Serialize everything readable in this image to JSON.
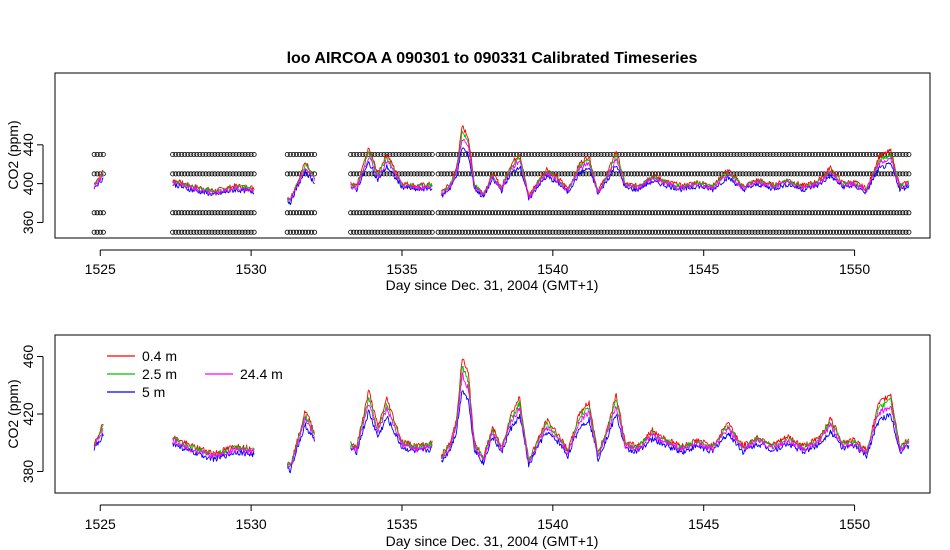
{
  "page_title": "loo   AIRCOA  A    090301  to  090331   Calibrated Timeseries",
  "chart_data": [
    {
      "type": "scatter",
      "title": "loo   AIRCOA  A    090301  to  090331   Calibrated Timeseries",
      "xlabel": "Day since Dec. 31, 2004 (GMT+1)",
      "ylabel": "CO2 (ppm)",
      "xlim": [
        1523.5,
        1552.5
      ],
      "ylim": [
        344,
        514
      ],
      "xticks": [
        "1525",
        "1530",
        "1535",
        "1540",
        "1545",
        "1550"
      ],
      "xtick_values": [
        1525,
        1530,
        1535,
        1540,
        1545,
        1550
      ],
      "yticks": [
        "360",
        "400",
        "440"
      ],
      "ytick_values": [
        360,
        400,
        440
      ],
      "calibration_levels": [
        350,
        370,
        410,
        430
      ],
      "calibration_spans": [
        [
          1524.8,
          1525.1
        ],
        [
          1527.4,
          1530.1
        ],
        [
          1531.2,
          1532.1
        ],
        [
          1533.3,
          1536.0
        ],
        [
          1536.2,
          1551.8
        ]
      ],
      "series_colors": [
        "#ff0000",
        "#00c000",
        "#0000ff",
        "#ff00ff"
      ]
    },
    {
      "type": "line",
      "xlabel": "Day since Dec. 31, 2004 (GMT+1)",
      "ylabel": "CO2 (ppm)",
      "xlim": [
        1523.5,
        1552.5
      ],
      "ylim": [
        365,
        475
      ],
      "xticks": [
        "1525",
        "1530",
        "1535",
        "1540",
        "1545",
        "1550"
      ],
      "xtick_values": [
        1525,
        1530,
        1535,
        1540,
        1545,
        1550
      ],
      "yticks": [
        "380",
        "420",
        "460"
      ],
      "ytick_values": [
        380,
        420,
        460
      ],
      "legend_position": "top-left",
      "segments": [
        [
          1524.8,
          1525.1
        ],
        [
          1527.4,
          1530.1
        ],
        [
          1531.2,
          1532.1
        ],
        [
          1533.3,
          1536.0
        ],
        [
          1536.3,
          1551.8
        ]
      ],
      "base_points": {
        "x": [
          1524.8,
          1525.1,
          1527.4,
          1528.0,
          1528.8,
          1529.5,
          1530.1,
          1531.3,
          1531.8,
          1532.1,
          1533.3,
          1533.5,
          1533.9,
          1534.2,
          1534.5,
          1535.0,
          1535.5,
          1536.0,
          1536.3,
          1536.6,
          1536.8,
          1537.0,
          1537.2,
          1537.4,
          1537.7,
          1538.0,
          1538.3,
          1538.6,
          1538.9,
          1539.2,
          1539.5,
          1539.8,
          1540.2,
          1540.5,
          1540.9,
          1541.2,
          1541.5,
          1541.8,
          1542.1,
          1542.4,
          1542.8,
          1543.3,
          1543.8,
          1544.3,
          1544.8,
          1545.3,
          1545.8,
          1546.3,
          1546.8,
          1547.3,
          1547.8,
          1548.3,
          1548.8,
          1549.2,
          1549.6,
          1550.0,
          1550.4,
          1550.8,
          1551.2,
          1551.5,
          1551.8
        ],
        "y": [
          398,
          410,
          402,
          396,
          391,
          396,
          394,
          383,
          418,
          405,
          398,
          396,
          430,
          408,
          425,
          399,
          396,
          398,
          389,
          398,
          412,
          450,
          440,
          398,
          388,
          408,
          395,
          415,
          426,
          386,
          400,
          412,
          403,
          393,
          417,
          423,
          391,
          407,
          428,
          398,
          396,
          406,
          400,
          396,
          400,
          396,
          411,
          396,
          402,
          397,
          402,
          396,
          401,
          413,
          399,
          400,
          393,
          422,
          428,
          396,
          400
        ]
      },
      "series": [
        {
          "name": "0.4 m",
          "offset": 3,
          "color": "#ff0000"
        },
        {
          "name": "2.5 m",
          "offset": 1,
          "color": "#00c000"
        },
        {
          "name": "5 m",
          "offset": -4,
          "color": "#0000ff"
        },
        {
          "name": "24.4 m",
          "offset": -1,
          "color": "#ff00ff"
        }
      ]
    }
  ]
}
